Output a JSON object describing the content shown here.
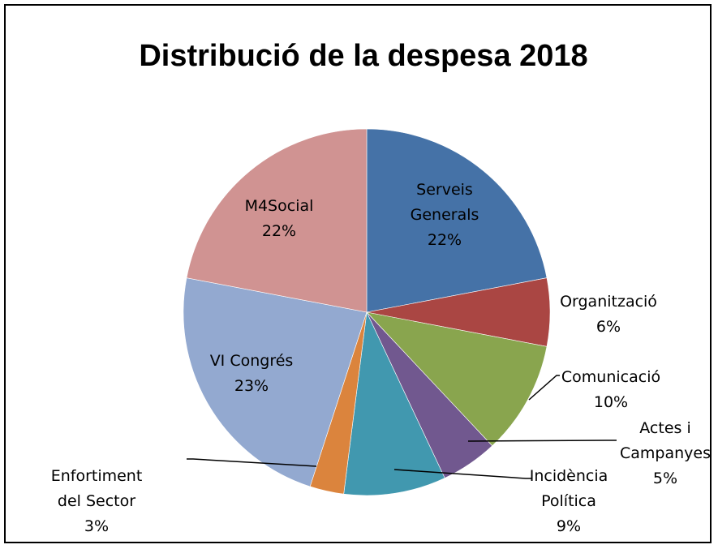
{
  "chart_data": {
    "type": "pie",
    "title": "Distribució de la despesa 2018",
    "slices": [
      {
        "label": "Serveis Generals",
        "label_lines": [
          "Serveis",
          "Generals"
        ],
        "percent_label": "22%",
        "value": 22,
        "color": "#4572A7",
        "placement": "inside"
      },
      {
        "label": "Organització",
        "label_lines": [
          "Organització"
        ],
        "percent_label": "6%",
        "value": 6,
        "color": "#AA4643",
        "placement": "outside"
      },
      {
        "label": "Comunicació",
        "label_lines": [
          "Comunicació"
        ],
        "percent_label": "10%",
        "value": 10,
        "color": "#89A54E",
        "placement": "outside"
      },
      {
        "label": "Actes i Campanyes",
        "label_lines": [
          "Actes i",
          "Campanyes"
        ],
        "percent_label": "5%",
        "value": 5,
        "color": "#71588F",
        "placement": "outside"
      },
      {
        "label": "Incidència Política",
        "label_lines": [
          "Incidència",
          "Política"
        ],
        "percent_label": "9%",
        "value": 9,
        "color": "#4198AF",
        "placement": "outside"
      },
      {
        "label": "Enfortiment del Sector",
        "label_lines": [
          "Enfortiment",
          "del Sector"
        ],
        "percent_label": "3%",
        "value": 3,
        "color": "#DB843D",
        "placement": "outside"
      },
      {
        "label": "VI Congrés",
        "label_lines": [
          "VI Congrés"
        ],
        "percent_label": "23%",
        "value": 23,
        "color": "#93A9D0",
        "placement": "inside"
      },
      {
        "label": "M4Social",
        "label_lines": [
          "M4Social"
        ],
        "percent_label": "22%",
        "value": 22,
        "color": "#D09392",
        "placement": "inside"
      }
    ]
  }
}
